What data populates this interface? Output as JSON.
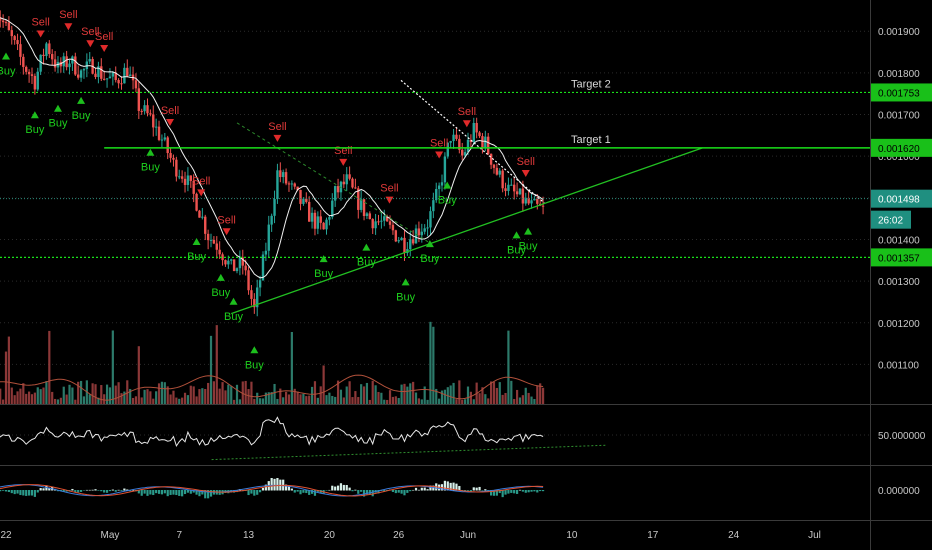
{
  "chart_data": {
    "type": "candlestick",
    "price_axis": {
      "ylim": [
        0.001005,
        0.001975
      ],
      "ticks": [
        "0.001900",
        "0.001800",
        "0.001700",
        "0.001600",
        "0.001500",
        "0.001400",
        "0.001300",
        "0.001200",
        "0.001100"
      ],
      "tick_values": [
        0.0019,
        0.0018,
        0.0017,
        0.0016,
        0.0015,
        0.0014,
        0.0013,
        0.0012,
        0.0011
      ]
    },
    "time_axis": {
      "labels": [
        {
          "text": "22",
          "day": 0
        },
        {
          "text": "May",
          "day": 9
        },
        {
          "text": "7",
          "day": 15
        },
        {
          "text": "13",
          "day": 21
        },
        {
          "text": "20",
          "day": 28
        },
        {
          "text": "26",
          "day": 34
        },
        {
          "text": "Jun",
          "day": 40
        },
        {
          "text": "10",
          "day": 49
        },
        {
          "text": "17",
          "day": 56
        },
        {
          "text": "24",
          "day": 63
        },
        {
          "text": "Jul",
          "day": 70
        }
      ]
    },
    "horizontal_levels": [
      {
        "label": "Target 2",
        "value": 0.001753,
        "tag": "0.001753",
        "color": "#19e019"
      },
      {
        "label": "Target 1",
        "value": 0.00162,
        "tag": "0.001620",
        "color": "#19e019"
      },
      {
        "label": "",
        "value": 0.001357,
        "tag": "0.001357",
        "color": "#19e019"
      }
    ],
    "current_price": {
      "tag": "0.001498",
      "value": 0.001498,
      "countdown": "26:02"
    },
    "price_path": [
      [
        -1,
        0.00196
      ],
      [
        0.5,
        0.00188
      ],
      [
        1.5,
        0.00182
      ],
      [
        2.5,
        0.00178
      ],
      [
        3.5,
        0.00187
      ],
      [
        4.5,
        0.00181
      ],
      [
        5.5,
        0.00183
      ],
      [
        6.5,
        0.0018
      ],
      [
        7.5,
        0.00182
      ],
      [
        8.5,
        0.00179
      ],
      [
        9.5,
        0.00178
      ],
      [
        10.5,
        0.00181
      ],
      [
        11.5,
        0.00172
      ],
      [
        12.5,
        0.00169
      ],
      [
        13.5,
        0.00164
      ],
      [
        14.5,
        0.00158
      ],
      [
        15.5,
        0.00155
      ],
      [
        16.5,
        0.00149
      ],
      [
        17.5,
        0.00141
      ],
      [
        18.5,
        0.00138
      ],
      [
        19.5,
        0.00133
      ],
      [
        20.5,
        0.00134
      ],
      [
        21.5,
        0.00123
      ],
      [
        22.5,
        0.00138
      ],
      [
        23.5,
        0.00156
      ],
      [
        24.5,
        0.00153
      ],
      [
        25.5,
        0.00149
      ],
      [
        26.5,
        0.00145
      ],
      [
        27.5,
        0.00142
      ],
      [
        28.5,
        0.00151
      ],
      [
        29.5,
        0.00154
      ],
      [
        30.5,
        0.00149
      ],
      [
        31.5,
        0.00145
      ],
      [
        32.5,
        0.00144
      ],
      [
        33.5,
        0.00142
      ],
      [
        34.5,
        0.00139
      ],
      [
        35.5,
        0.00142
      ],
      [
        36.5,
        0.00144
      ],
      [
        37.5,
        0.00152
      ],
      [
        38.5,
        0.00165
      ],
      [
        39.5,
        0.0016
      ],
      [
        40.5,
        0.00166
      ],
      [
        41.5,
        0.00163
      ],
      [
        42.5,
        0.00156
      ],
      [
        43.5,
        0.00152
      ],
      [
        44.5,
        0.0015
      ],
      [
        45.5,
        0.00148
      ],
      [
        46.5,
        0.00147
      ]
    ],
    "signals": [
      {
        "label": "Buy",
        "day": 0,
        "type": "buy"
      },
      {
        "label": "Buy",
        "day": 2.5,
        "type": "buy"
      },
      {
        "label": "Buy",
        "day": 4.5,
        "type": "buy"
      },
      {
        "label": "Buy",
        "day": 6.5,
        "type": "buy"
      },
      {
        "label": "Buy",
        "day": 12.5,
        "type": "buy"
      },
      {
        "label": "Buy",
        "day": 16.5,
        "type": "buy"
      },
      {
        "label": "Buy",
        "day": 18.6,
        "type": "buy"
      },
      {
        "label": "Buy",
        "day": 19.7,
        "type": "buy"
      },
      {
        "label": "Buy",
        "day": 21.5,
        "type": "buy"
      },
      {
        "label": "Buy",
        "day": 27.5,
        "type": "buy"
      },
      {
        "label": "Buy",
        "day": 31.2,
        "type": "buy"
      },
      {
        "label": "Buy",
        "day": 34.6,
        "type": "buy"
      },
      {
        "label": "Buy",
        "day": 36.7,
        "type": "buy"
      },
      {
        "label": "Buy",
        "day": 38.2,
        "type": "buy"
      },
      {
        "label": "Buy",
        "day": 44.2,
        "type": "buy"
      },
      {
        "label": "Buy",
        "day": 45.2,
        "type": "buy"
      },
      {
        "label": "Sell",
        "day": 3,
        "type": "sell"
      },
      {
        "label": "Sell",
        "day": 5.4,
        "type": "sell"
      },
      {
        "label": "Sell",
        "day": 7.3,
        "type": "sell"
      },
      {
        "label": "Sell",
        "day": 8.5,
        "type": "sell"
      },
      {
        "label": "Sell",
        "day": 14.2,
        "type": "sell"
      },
      {
        "label": "Sell",
        "day": 16.9,
        "type": "sell"
      },
      {
        "label": "Sell",
        "day": 19.1,
        "type": "sell"
      },
      {
        "label": "Sell",
        "day": 23.5,
        "type": "sell"
      },
      {
        "label": "Sell",
        "day": 29.2,
        "type": "sell"
      },
      {
        "label": "Sell",
        "day": 33.2,
        "type": "sell"
      },
      {
        "label": "Sell",
        "day": 37.5,
        "type": "sell"
      },
      {
        "label": "Sell",
        "day": 39.9,
        "type": "sell"
      },
      {
        "label": "Sell",
        "day": 45,
        "type": "sell"
      }
    ],
    "rsi": {
      "ylim": [
        0,
        100
      ],
      "tick": "50.000000",
      "tick_value": 50
    },
    "macd": {
      "tick": "0.000000",
      "tick_value": 0
    }
  }
}
